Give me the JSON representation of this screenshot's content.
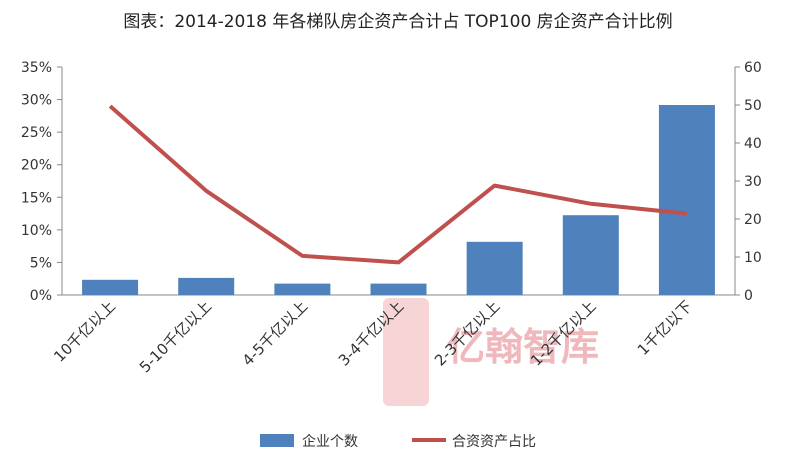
{
  "title": "图表：2014-2018 年各梯队房企资产合计占 TOP100 房企资产合计比例",
  "watermark": "亿翰智库",
  "chart_data": {
    "type": "bar+line",
    "categories": [
      "10千亿以上",
      "5-10千亿以上",
      "4-5千亿以上",
      "3-4千亿以上",
      "2-3千亿以上",
      "1-2千亿以上",
      "1千亿以下"
    ],
    "series": [
      {
        "name": "企业个数",
        "type": "bar",
        "axis": "right",
        "color": "#4f81bd",
        "values": [
          4,
          4.5,
          3,
          3,
          14,
          21,
          50
        ]
      },
      {
        "name": "合资资产占比",
        "type": "line",
        "axis": "left",
        "color": "#c0504d",
        "values": [
          0.29,
          0.16,
          0.06,
          0.05,
          0.168,
          0.14,
          0.125
        ]
      }
    ],
    "y_left": {
      "ticks": [
        "0%",
        "5%",
        "10%",
        "15%",
        "20%",
        "25%",
        "30%",
        "35%"
      ],
      "ylim": [
        0,
        0.35
      ]
    },
    "y_right": {
      "ticks": [
        "0",
        "10",
        "20",
        "30",
        "40",
        "50",
        "60"
      ],
      "ylim": [
        0,
        60
      ]
    },
    "legend_position": "bottom",
    "grid": false
  }
}
